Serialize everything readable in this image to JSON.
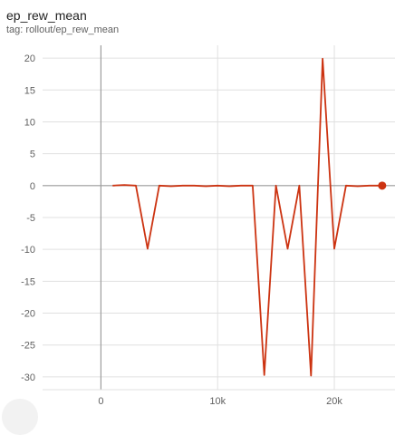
{
  "header": {
    "title": "ep_rew_mean",
    "tag": "tag: rollout/ep_rew_mean"
  },
  "colors": {
    "series": "#cc3311",
    "grid": "#e0e0e0",
    "axis": "#9e9e9e",
    "zero_line": "#9e9e9e"
  },
  "chart_data": {
    "type": "line",
    "title": "ep_rew_mean",
    "xlabel": "",
    "ylabel": "",
    "xlim": [
      -5000,
      25200
    ],
    "ylim": [
      -32,
      22
    ],
    "grid": true,
    "x_ticks": [
      0,
      10000,
      20000
    ],
    "x_tick_labels": [
      "0",
      "10k",
      "20k"
    ],
    "y_ticks": [
      20,
      15,
      10,
      5,
      0,
      -5,
      -10,
      -15,
      -20,
      -25,
      -30
    ],
    "y_tick_labels": [
      "20",
      "15",
      "10",
      "5",
      "0",
      "-5",
      "-10",
      "-15",
      "-20",
      "-25",
      "-30"
    ],
    "series": [
      {
        "x": [
          1000,
          2000,
          3000,
          4000,
          5000,
          6000,
          7000,
          8000,
          9000,
          10000,
          11000,
          12000,
          13000,
          14000,
          15000,
          16000,
          17000,
          18000,
          19000,
          20000,
          21000,
          22000,
          23000,
          24100
        ],
        "values": [
          0,
          0.1,
          0,
          -9.9,
          0,
          -0.1,
          0,
          0,
          -0.1,
          0,
          -0.1,
          0,
          0,
          -29.7,
          0,
          -9.9,
          0,
          -29.8,
          19.9,
          -9.9,
          0,
          -0.1,
          0,
          0
        ]
      }
    ]
  }
}
